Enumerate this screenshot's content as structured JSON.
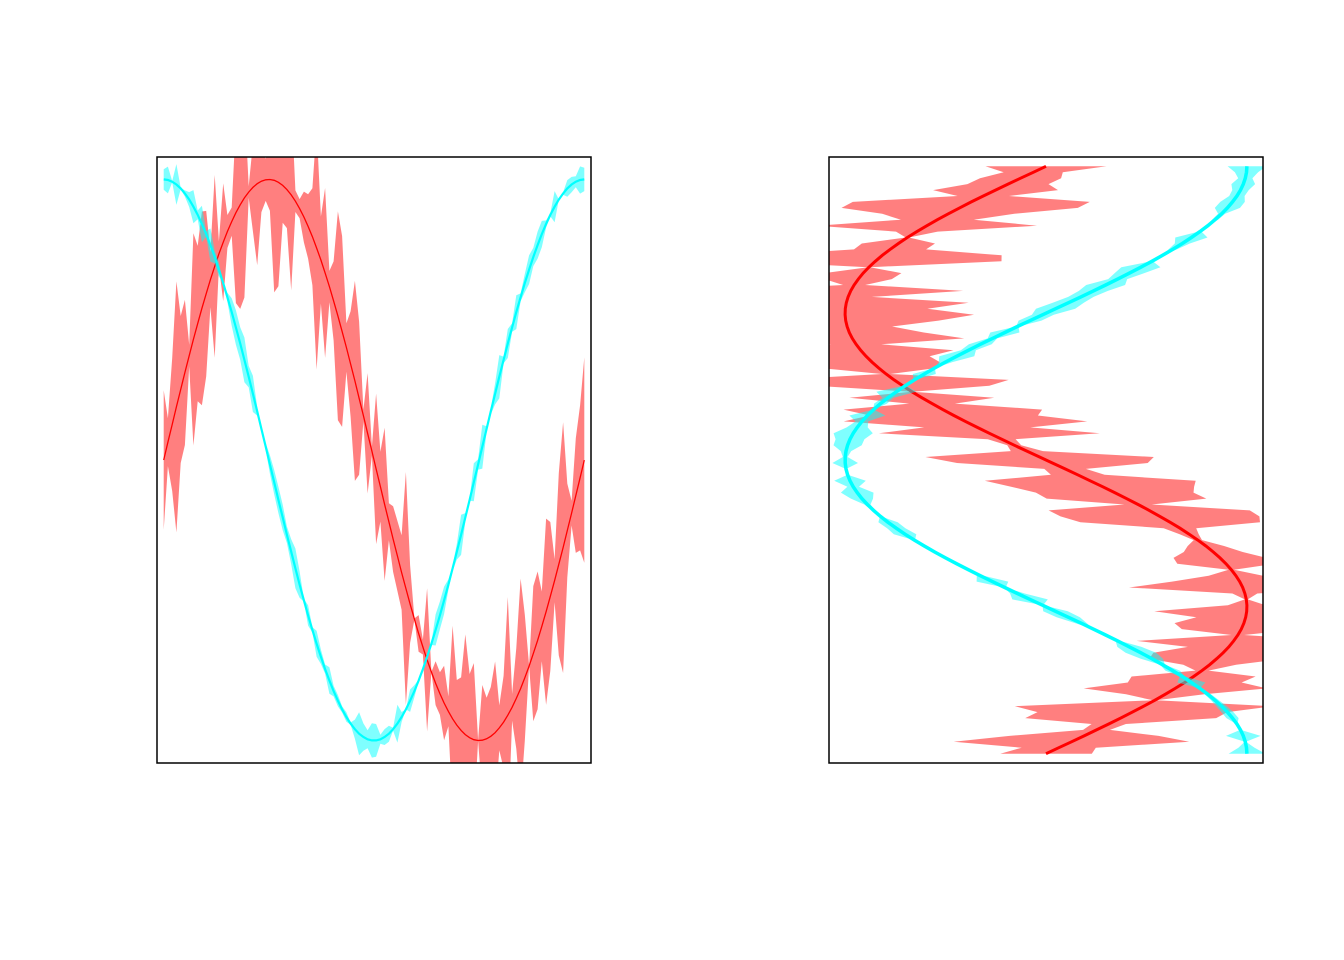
{
  "figure": {
    "background": "#ffffff"
  },
  "chart_data": [
    {
      "type": "line",
      "orientation": "vertical",
      "title": "",
      "xlabel": "",
      "ylabel": "",
      "axes_shown": false,
      "box": true,
      "xlim": [
        -0.1,
        6.383
      ],
      "ylim": [
        -1.08,
        1.08
      ],
      "x_range": [
        0,
        6.283
      ],
      "n_points": 100,
      "series": [
        {
          "color": "#ff0000",
          "band_color": "#ff0000",
          "band_opacity": 0.5,
          "function": "sin",
          "band_max_halfwidth": 0.45,
          "line_width": 1.3
        },
        {
          "color": "#00ffff",
          "band_color": "#00ffff",
          "band_opacity": 0.5,
          "function": "cos",
          "band_max_halfwidth": 0.08,
          "line_width": 2.2
        }
      ]
    },
    {
      "type": "line",
      "orientation": "horizontal",
      "title": "",
      "xlabel": "",
      "ylabel": "",
      "axes_shown": false,
      "box": true,
      "xlim": [
        -1.08,
        1.08
      ],
      "ylim": [
        -0.1,
        6.383
      ],
      "y_range": [
        0,
        6.283
      ],
      "y_reversed": true,
      "n_points": 100,
      "series": [
        {
          "color": "#ff0000",
          "band_color": "#ff0000",
          "band_opacity": 0.5,
          "function": "-sin",
          "band_max_halfwidth": 0.65,
          "line_width": 3
        },
        {
          "color": "#00ffff",
          "band_color": "#00ffff",
          "band_opacity": 0.5,
          "function": "cos",
          "band_max_halfwidth": 0.1,
          "line_width": 3.5
        }
      ]
    }
  ]
}
